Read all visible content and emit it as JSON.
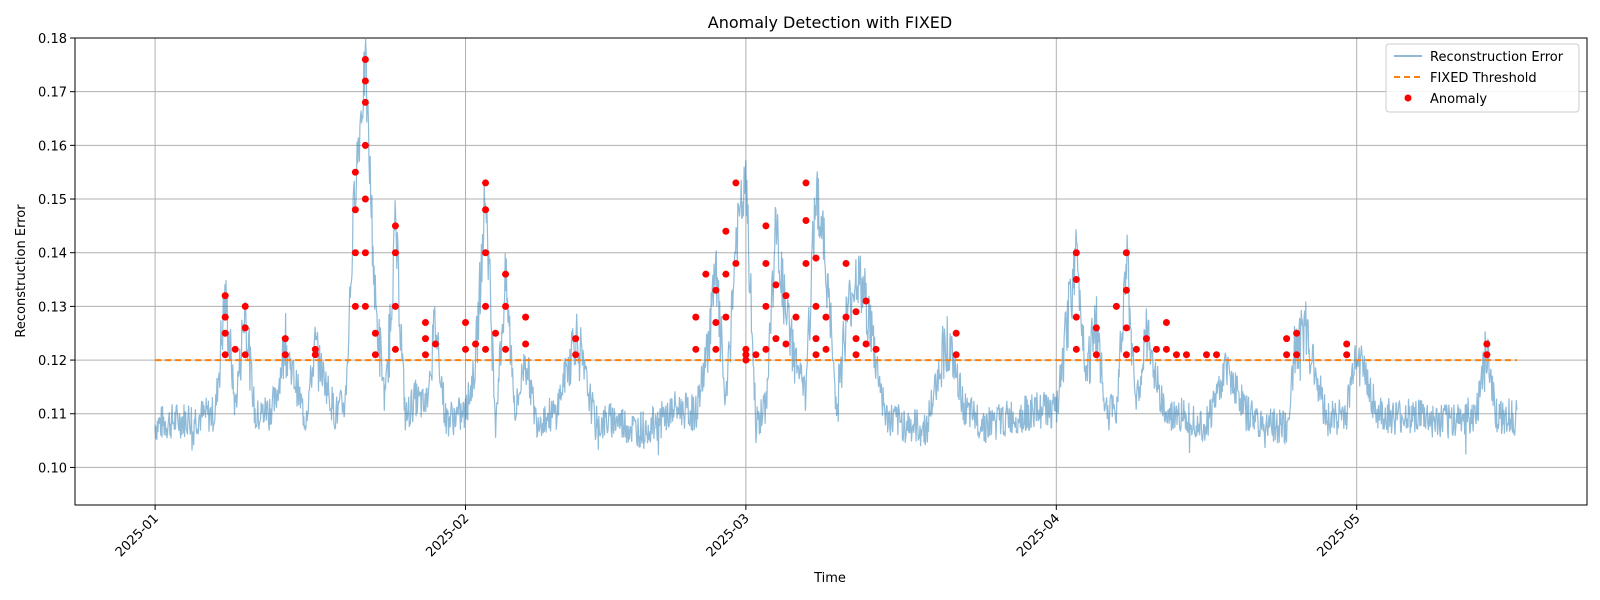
{
  "chart_data": {
    "type": "line",
    "title": "Anomaly Detection with FIXED",
    "xlabel": "Time",
    "ylabel": "Reconstruction Error",
    "x_range": [
      "2024-12-24",
      "2025-05-24"
    ],
    "ylim": [
      0.093,
      0.18
    ],
    "grid": true,
    "legend_position": "top-right",
    "x_ticks": [
      {
        "date": "2025-01-01",
        "label": "2025-01"
      },
      {
        "date": "2025-02-01",
        "label": "2025-02"
      },
      {
        "date": "2025-03-01",
        "label": "2025-03"
      },
      {
        "date": "2025-04-01",
        "label": "2025-04"
      },
      {
        "date": "2025-05-01",
        "label": "2025-05"
      }
    ],
    "y_ticks": [
      0.1,
      0.11,
      0.12,
      0.13,
      0.14,
      0.15,
      0.16,
      0.17,
      0.18
    ],
    "series": [
      {
        "name": "Reconstruction Error",
        "kind": "line",
        "color": "#1f77b4",
        "x": [
          "2025-01-01",
          "2025-01-04",
          "2025-01-07",
          "2025-01-08",
          "2025-01-09",
          "2025-01-10",
          "2025-01-11",
          "2025-01-13",
          "2025-01-14",
          "2025-01-16",
          "2025-01-17",
          "2025-01-19",
          "2025-01-20",
          "2025-01-21",
          "2025-01-22",
          "2025-01-23",
          "2025-01-24",
          "2025-01-25",
          "2025-01-26",
          "2025-01-27",
          "2025-01-28",
          "2025-01-29",
          "2025-01-30",
          "2025-02-01",
          "2025-02-02",
          "2025-02-03",
          "2025-02-04",
          "2025-02-05",
          "2025-02-06",
          "2025-02-07",
          "2025-02-08",
          "2025-02-10",
          "2025-02-12",
          "2025-02-14",
          "2025-02-16",
          "2025-02-18",
          "2025-02-20",
          "2025-02-22",
          "2025-02-24",
          "2025-02-25",
          "2025-02-26",
          "2025-02-27",
          "2025-02-28",
          "2025-03-01",
          "2025-03-02",
          "2025-03-03",
          "2025-03-04",
          "2025-03-05",
          "2025-03-06",
          "2025-03-07",
          "2025-03-08",
          "2025-03-09",
          "2025-03-10",
          "2025-03-11",
          "2025-03-12",
          "2025-03-13",
          "2025-03-15",
          "2025-03-17",
          "2025-03-19",
          "2025-03-21",
          "2025-03-23",
          "2025-03-25",
          "2025-03-27",
          "2025-03-29",
          "2025-03-31",
          "2025-04-01",
          "2025-04-03",
          "2025-04-04",
          "2025-04-05",
          "2025-04-06",
          "2025-04-07",
          "2025-04-08",
          "2025-04-09",
          "2025-04-10",
          "2025-04-12",
          "2025-04-14",
          "2025-04-16",
          "2025-04-18",
          "2025-04-20",
          "2025-04-22",
          "2025-04-24",
          "2025-04-25",
          "2025-04-26",
          "2025-04-28",
          "2025-04-30",
          "2025-05-01",
          "2025-05-03",
          "2025-05-05",
          "2025-05-07",
          "2025-05-09",
          "2025-05-11",
          "2025-05-13",
          "2025-05-14",
          "2025-05-15",
          "2025-05-16",
          "2025-05-17"
        ],
        "values": [
          0.108,
          0.109,
          0.11,
          0.132,
          0.111,
          0.13,
          0.109,
          0.112,
          0.123,
          0.109,
          0.122,
          0.11,
          0.112,
          0.154,
          0.175,
          0.13,
          0.112,
          0.145,
          0.109,
          0.113,
          0.111,
          0.127,
          0.109,
          0.11,
          0.119,
          0.152,
          0.109,
          0.135,
          0.11,
          0.121,
          0.109,
          0.11,
          0.125,
          0.108,
          0.109,
          0.107,
          0.108,
          0.111,
          0.11,
          0.12,
          0.136,
          0.111,
          0.142,
          0.153,
          0.108,
          0.111,
          0.145,
          0.128,
          0.12,
          0.113,
          0.153,
          0.138,
          0.112,
          0.127,
          0.136,
          0.131,
          0.109,
          0.108,
          0.107,
          0.124,
          0.11,
          0.108,
          0.109,
          0.11,
          0.111,
          0.11,
          0.14,
          0.118,
          0.127,
          0.11,
          0.111,
          0.14,
          0.111,
          0.124,
          0.109,
          0.11,
          0.108,
          0.119,
          0.11,
          0.108,
          0.107,
          0.124,
          0.125,
          0.109,
          0.11,
          0.123,
          0.11,
          0.109,
          0.11,
          0.108,
          0.109,
          0.11,
          0.123,
          0.109,
          0.11,
          0.109
        ]
      },
      {
        "name": "FIXED Threshold",
        "kind": "hline",
        "color": "#ff7f0e",
        "value": 0.12
      },
      {
        "name": "Anomaly",
        "kind": "scatter",
        "color": "#ff0000",
        "x": [
          "2025-01-08",
          "2025-01-08",
          "2025-01-08",
          "2025-01-08",
          "2025-01-09",
          "2025-01-10",
          "2025-01-10",
          "2025-01-10",
          "2025-01-14",
          "2025-01-14",
          "2025-01-17",
          "2025-01-17",
          "2025-01-21",
          "2025-01-21",
          "2025-01-21",
          "2025-01-21",
          "2025-01-22",
          "2025-01-22",
          "2025-01-22",
          "2025-01-22",
          "2025-01-22",
          "2025-01-22",
          "2025-01-22",
          "2025-01-23",
          "2025-01-23",
          "2025-01-25",
          "2025-01-25",
          "2025-01-25",
          "2025-01-25",
          "2025-01-28",
          "2025-01-28",
          "2025-01-28",
          "2025-01-29",
          "2025-02-01",
          "2025-02-01",
          "2025-02-02",
          "2025-02-03",
          "2025-02-03",
          "2025-02-03",
          "2025-02-03",
          "2025-02-03",
          "2025-02-04",
          "2025-02-05",
          "2025-02-05",
          "2025-02-05",
          "2025-02-07",
          "2025-02-07",
          "2025-02-12",
          "2025-02-12",
          "2025-02-24",
          "2025-02-24",
          "2025-02-25",
          "2025-02-26",
          "2025-02-26",
          "2025-02-26",
          "2025-02-27",
          "2025-02-27",
          "2025-02-27",
          "2025-02-28",
          "2025-02-28",
          "2025-03-01",
          "2025-03-01",
          "2025-03-01",
          "2025-03-02",
          "2025-03-03",
          "2025-03-03",
          "2025-03-03",
          "2025-03-03",
          "2025-03-04",
          "2025-03-04",
          "2025-03-05",
          "2025-03-05",
          "2025-03-06",
          "2025-03-07",
          "2025-03-07",
          "2025-03-07",
          "2025-03-08",
          "2025-03-08",
          "2025-03-08",
          "2025-03-08",
          "2025-03-09",
          "2025-03-09",
          "2025-03-11",
          "2025-03-11",
          "2025-03-12",
          "2025-03-12",
          "2025-03-12",
          "2025-03-13",
          "2025-03-13",
          "2025-03-14",
          "2025-03-22",
          "2025-03-22",
          "2025-04-03",
          "2025-04-03",
          "2025-04-03",
          "2025-04-03",
          "2025-04-05",
          "2025-04-05",
          "2025-04-07",
          "2025-04-08",
          "2025-04-08",
          "2025-04-08",
          "2025-04-08",
          "2025-04-09",
          "2025-04-10",
          "2025-04-11",
          "2025-04-12",
          "2025-04-12",
          "2025-04-13",
          "2025-04-14",
          "2025-04-16",
          "2025-04-17",
          "2025-04-24",
          "2025-04-24",
          "2025-04-25",
          "2025-04-25",
          "2025-04-30",
          "2025-04-30",
          "2025-05-14",
          "2025-05-14"
        ],
        "values": [
          0.132,
          0.128,
          0.125,
          0.121,
          0.122,
          0.13,
          0.126,
          0.121,
          0.124,
          0.121,
          0.122,
          0.121,
          0.155,
          0.148,
          0.14,
          0.13,
          0.176,
          0.172,
          0.168,
          0.16,
          0.15,
          0.14,
          0.13,
          0.125,
          0.121,
          0.145,
          0.14,
          0.13,
          0.122,
          0.127,
          0.124,
          0.121,
          0.123,
          0.127,
          0.122,
          0.123,
          0.153,
          0.148,
          0.14,
          0.13,
          0.122,
          0.125,
          0.136,
          0.13,
          0.122,
          0.128,
          0.123,
          0.124,
          0.121,
          0.122,
          0.128,
          0.136,
          0.133,
          0.127,
          0.122,
          0.144,
          0.136,
          0.128,
          0.153,
          0.138,
          0.122,
          0.121,
          0.12,
          0.121,
          0.145,
          0.138,
          0.13,
          0.122,
          0.134,
          0.124,
          0.132,
          0.123,
          0.128,
          0.153,
          0.146,
          0.138,
          0.139,
          0.13,
          0.124,
          0.121,
          0.128,
          0.122,
          0.138,
          0.128,
          0.129,
          0.124,
          0.121,
          0.131,
          0.123,
          0.122,
          0.125,
          0.121,
          0.14,
          0.135,
          0.128,
          0.122,
          0.126,
          0.121,
          0.13,
          0.14,
          0.133,
          0.126,
          0.121,
          0.122,
          0.124,
          0.122,
          0.127,
          0.122,
          0.121,
          0.121,
          0.121,
          0.121,
          0.124,
          0.121,
          0.125,
          0.121,
          0.123,
          0.121,
          0.123,
          0.121
        ]
      }
    ]
  }
}
